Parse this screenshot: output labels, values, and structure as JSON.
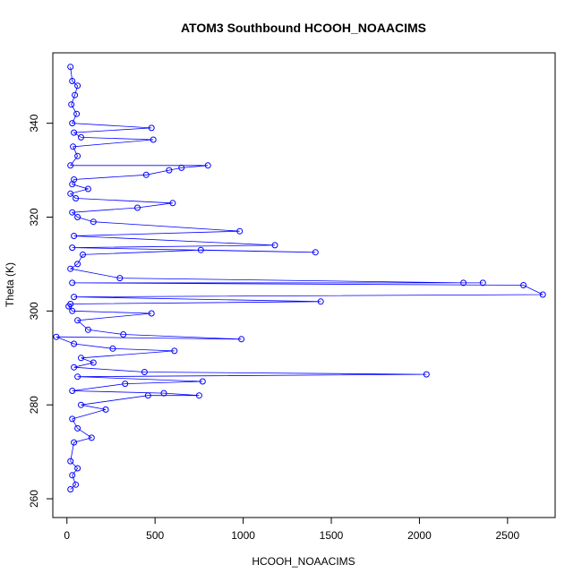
{
  "chart_data": {
    "type": "line",
    "title": "ATOM3 Southbound HCOOH_NOAACIMS",
    "xlabel": "HCOOH_NOAACIMS",
    "ylabel": "Theta (K)",
    "xlim": [
      -80,
      2770
    ],
    "ylim": [
      256,
      355
    ],
    "xticks": [
      0,
      500,
      1000,
      1500,
      2000,
      2500
    ],
    "yticks": [
      260,
      280,
      300,
      320,
      340
    ],
    "grid": false,
    "legend": "none",
    "marker": "open-circle",
    "series": [
      {
        "color": "#0000ff",
        "points": [
          [
            20,
            352
          ],
          [
            30,
            349
          ],
          [
            60,
            348
          ],
          [
            45,
            346
          ],
          [
            25,
            344
          ],
          [
            55,
            342
          ],
          [
            30,
            340
          ],
          [
            480,
            339
          ],
          [
            40,
            338
          ],
          [
            80,
            337
          ],
          [
            490,
            336.5
          ],
          [
            35,
            335
          ],
          [
            60,
            333
          ],
          [
            20,
            331
          ],
          [
            800,
            331
          ],
          [
            650,
            330.5
          ],
          [
            580,
            330
          ],
          [
            450,
            329
          ],
          [
            40,
            328
          ],
          [
            30,
            327
          ],
          [
            120,
            326
          ],
          [
            20,
            325
          ],
          [
            50,
            324
          ],
          [
            600,
            323
          ],
          [
            400,
            322
          ],
          [
            30,
            321
          ],
          [
            60,
            320
          ],
          [
            150,
            319
          ],
          [
            980,
            317
          ],
          [
            40,
            316
          ],
          [
            1180,
            314
          ],
          [
            30,
            313.5
          ],
          [
            1410,
            312.5
          ],
          [
            760,
            313
          ],
          [
            90,
            312
          ],
          [
            60,
            310
          ],
          [
            20,
            309
          ],
          [
            300,
            307
          ],
          [
            2250,
            306
          ],
          [
            2360,
            306
          ],
          [
            30,
            306
          ],
          [
            2590,
            305.5
          ],
          [
            2700,
            303.5
          ],
          [
            40,
            303
          ],
          [
            1440,
            302
          ],
          [
            20,
            301.5
          ],
          [
            10,
            301
          ],
          [
            30,
            300
          ],
          [
            480,
            299.5
          ],
          [
            60,
            298
          ],
          [
            120,
            296
          ],
          [
            320,
            295
          ],
          [
            990,
            294
          ],
          [
            -60,
            294.5
          ],
          [
            40,
            293
          ],
          [
            260,
            292
          ],
          [
            610,
            291.5
          ],
          [
            80,
            290
          ],
          [
            150,
            289
          ],
          [
            40,
            288
          ],
          [
            440,
            287
          ],
          [
            2040,
            286.5
          ],
          [
            60,
            286
          ],
          [
            770,
            285
          ],
          [
            330,
            284.5
          ],
          [
            30,
            283
          ],
          [
            550,
            282.5
          ],
          [
            750,
            282
          ],
          [
            460,
            282
          ],
          [
            80,
            280
          ],
          [
            220,
            279
          ],
          [
            30,
            277
          ],
          [
            60,
            275
          ],
          [
            140,
            273
          ],
          [
            40,
            272
          ],
          [
            20,
            268
          ],
          [
            60,
            266.5
          ],
          [
            30,
            265
          ],
          [
            50,
            263
          ],
          [
            20,
            262
          ]
        ]
      }
    ]
  }
}
